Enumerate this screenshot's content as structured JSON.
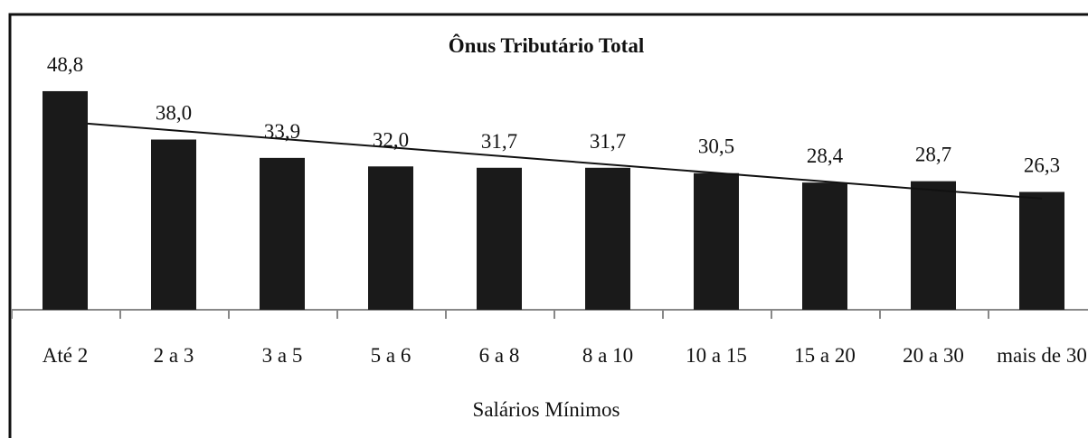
{
  "chart_data": {
    "type": "bar",
    "title": "Ônus Tributário Total",
    "x_label": "Salários Mínimos",
    "categories": [
      "Até 2",
      "2 a 3",
      "3 a 5",
      "5 a 6",
      "6 a 8",
      "8 a 10",
      "10 a 15",
      "15 a 20",
      "20 a 30",
      "mais de 30"
    ],
    "values": [
      48.8,
      38.0,
      33.9,
      32.0,
      31.7,
      31.7,
      30.5,
      28.4,
      28.7,
      26.3
    ],
    "value_labels": [
      "48,8",
      "38,0",
      "33,9",
      "32,0",
      "31,7",
      "31,7",
      "30,5",
      "28,4",
      "28,7",
      "26,3"
    ],
    "color": "#1a1a1a",
    "trendline": "linear"
  }
}
